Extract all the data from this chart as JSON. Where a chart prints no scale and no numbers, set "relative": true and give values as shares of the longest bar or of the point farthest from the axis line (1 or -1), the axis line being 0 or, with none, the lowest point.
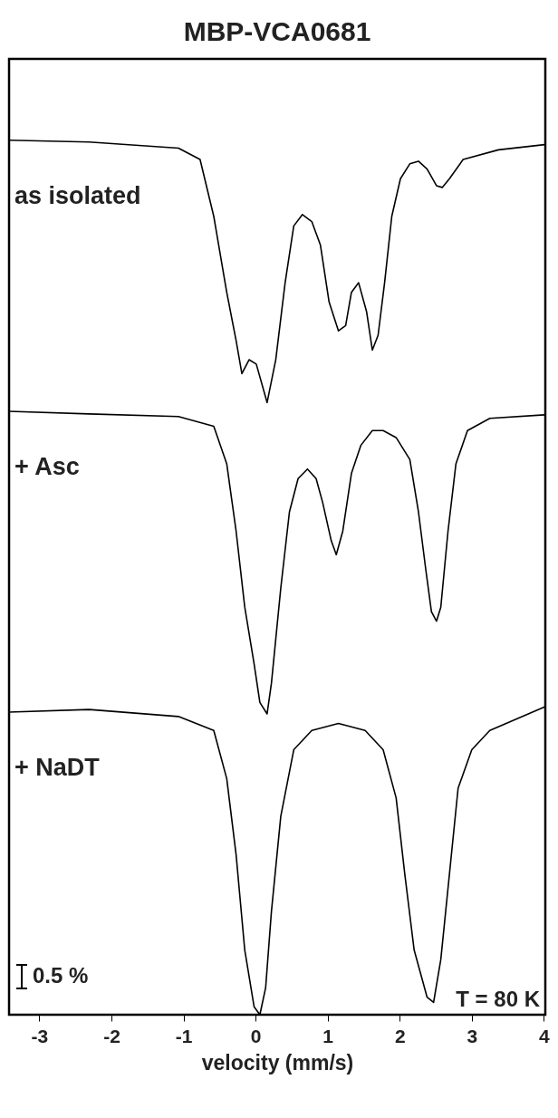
{
  "chart_data": {
    "type": "line",
    "title": "MBP-VCA0681",
    "xlabel": "velocity (mm/s)",
    "relative": true,
    "tick_labels": "x",
    "xlim": [
      -3.42,
      4.02
    ],
    "xticks": [
      -3,
      -2,
      -1,
      0,
      1,
      2,
      3,
      4
    ],
    "annotations": [
      "0.5 %",
      "T = 80 K"
    ],
    "series": [
      {
        "name": "as isolated",
        "color": "#000000",
        "x": [
          -3.42,
          -2.31,
          -1.07,
          -0.77,
          -0.58,
          -0.4,
          -0.27,
          -0.19,
          -0.09,
          0.01,
          0.16,
          0.28,
          0.41,
          0.53,
          0.65,
          0.78,
          0.9,
          1.02,
          1.15,
          1.25,
          1.33,
          1.43,
          1.54,
          1.62,
          1.7,
          1.79,
          1.89,
          2.01,
          2.14,
          2.26,
          2.38,
          2.51,
          2.59,
          2.69,
          2.88,
          3.37,
          4.01
        ],
        "values": [
          1.0,
          0.998,
          0.991,
          0.978,
          0.913,
          0.826,
          0.771,
          0.733,
          0.749,
          0.744,
          0.7,
          0.749,
          0.837,
          0.902,
          0.915,
          0.907,
          0.88,
          0.815,
          0.782,
          0.788,
          0.826,
          0.837,
          0.804,
          0.76,
          0.777,
          0.837,
          0.913,
          0.956,
          0.973,
          0.976,
          0.967,
          0.948,
          0.946,
          0.956,
          0.978,
          0.989,
          0.995
        ]
      },
      {
        "name": "+ Asc",
        "color": "#000000",
        "x": [
          -3.42,
          -2.31,
          -1.07,
          -0.58,
          -0.4,
          -0.27,
          -0.15,
          -0.02,
          0.06,
          0.16,
          0.22,
          0.35,
          0.47,
          0.59,
          0.72,
          0.84,
          0.93,
          1.05,
          1.12,
          1.21,
          1.33,
          1.46,
          1.62,
          1.77,
          1.95,
          2.14,
          2.26,
          2.36,
          2.44,
          2.51,
          2.57,
          2.67,
          2.78,
          2.94,
          3.25,
          4.01
        ],
        "values": [
          0.69,
          0.687,
          0.684,
          0.673,
          0.63,
          0.553,
          0.466,
          0.401,
          0.357,
          0.344,
          0.379,
          0.488,
          0.575,
          0.613,
          0.624,
          0.613,
          0.586,
          0.542,
          0.526,
          0.553,
          0.619,
          0.651,
          0.668,
          0.668,
          0.66,
          0.635,
          0.575,
          0.51,
          0.461,
          0.45,
          0.466,
          0.553,
          0.63,
          0.668,
          0.682,
          0.686
        ]
      },
      {
        "name": "+ NaDT",
        "color": "#000000",
        "x": [
          -3.42,
          -2.31,
          -1.07,
          -0.58,
          -0.4,
          -0.27,
          -0.15,
          -0.02,
          0.06,
          0.14,
          0.22,
          0.35,
          0.53,
          0.78,
          1.15,
          1.52,
          1.77,
          1.95,
          2.07,
          2.2,
          2.38,
          2.47,
          2.57,
          2.69,
          2.81,
          3.0,
          3.25,
          4.01
        ],
        "values": [
          0.346,
          0.349,
          0.341,
          0.325,
          0.27,
          0.183,
          0.074,
          0.009,
          0.0,
          0.031,
          0.118,
          0.227,
          0.303,
          0.325,
          0.333,
          0.325,
          0.303,
          0.248,
          0.161,
          0.074,
          0.02,
          0.014,
          0.063,
          0.161,
          0.259,
          0.303,
          0.325,
          0.352
        ]
      }
    ]
  }
}
